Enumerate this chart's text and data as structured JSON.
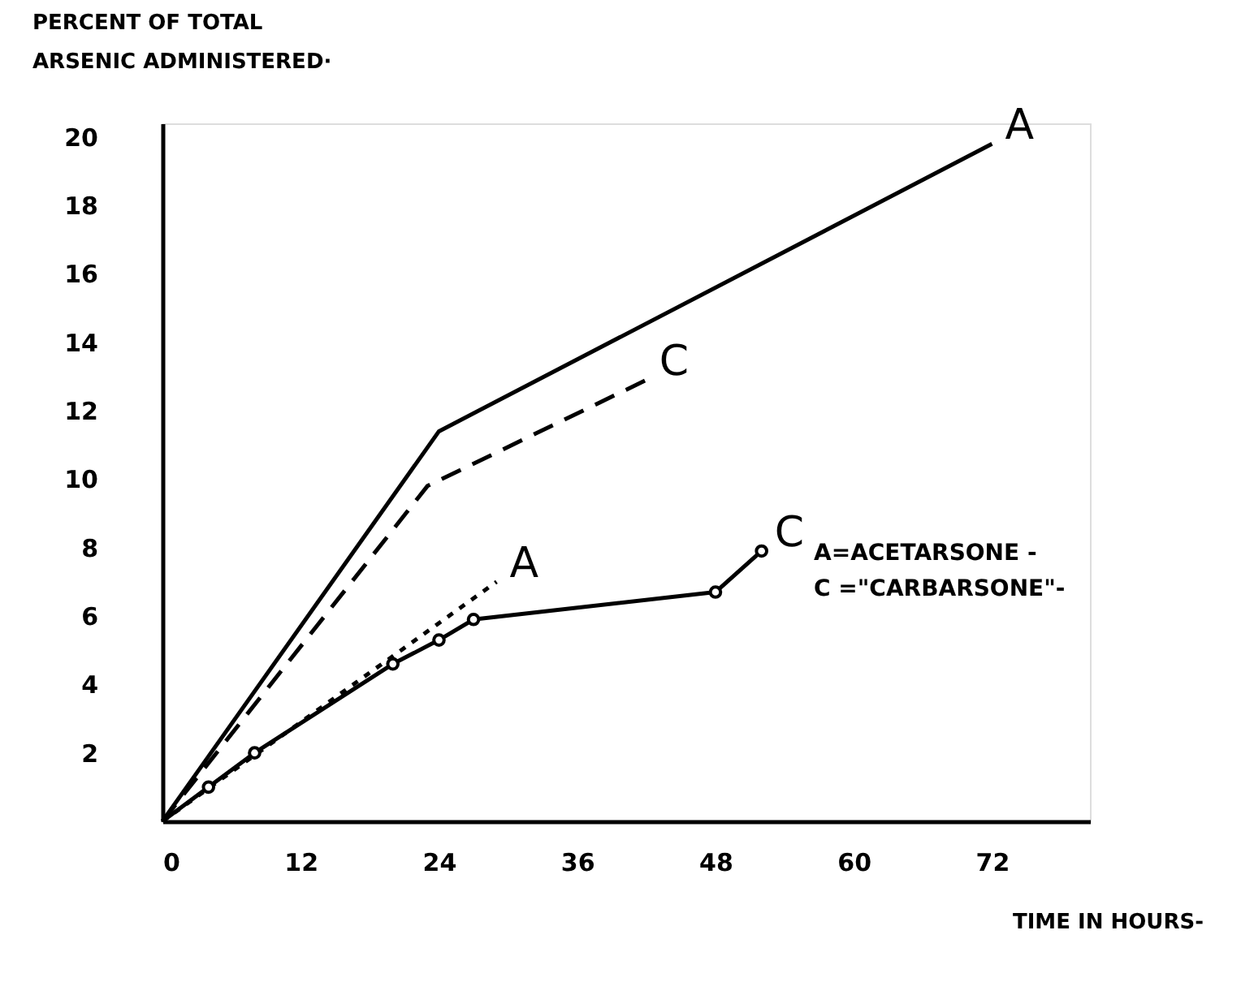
{
  "chart_data": {
    "type": "line",
    "ylabel": "PERCENT OF TOTAL\nARSENIC ADMINISTERED·",
    "xlabel": "TIME IN HOURS-",
    "xlim": [
      0,
      80.5
    ],
    "ylim": [
      0,
      20.4
    ],
    "xticks": [
      0,
      12,
      24,
      36,
      48,
      60,
      72
    ],
    "yticks": [
      2,
      4,
      6,
      8,
      10,
      12,
      14,
      16,
      18,
      20
    ],
    "grid": false,
    "series": [
      {
        "name": "A",
        "color": "#000000",
        "line_style": "solid",
        "marker": "none",
        "x": [
          0,
          24,
          72
        ],
        "values": [
          0,
          11.4,
          19.8
        ]
      },
      {
        "name": "C",
        "color": "#000000",
        "line_style": "dashed",
        "marker": "none",
        "x": [
          0,
          23,
          42
        ],
        "values": [
          0,
          9.8,
          12.9
        ]
      },
      {
        "name": "A",
        "color": "#000000",
        "line_style": "dotted",
        "marker": "none",
        "x": [
          0,
          29
        ],
        "values": [
          0,
          7.0
        ]
      },
      {
        "name": "C",
        "color": "#000000",
        "line_style": "solid",
        "marker": "circle",
        "x": [
          0,
          4,
          8,
          20,
          24,
          27,
          48,
          52
        ],
        "values": [
          0,
          1.0,
          2.0,
          4.6,
          5.3,
          5.9,
          6.7,
          7.9
        ]
      }
    ],
    "annotations": [
      "A=ACETARSONE -",
      "C =\"CARBARSONE\"-"
    ]
  }
}
